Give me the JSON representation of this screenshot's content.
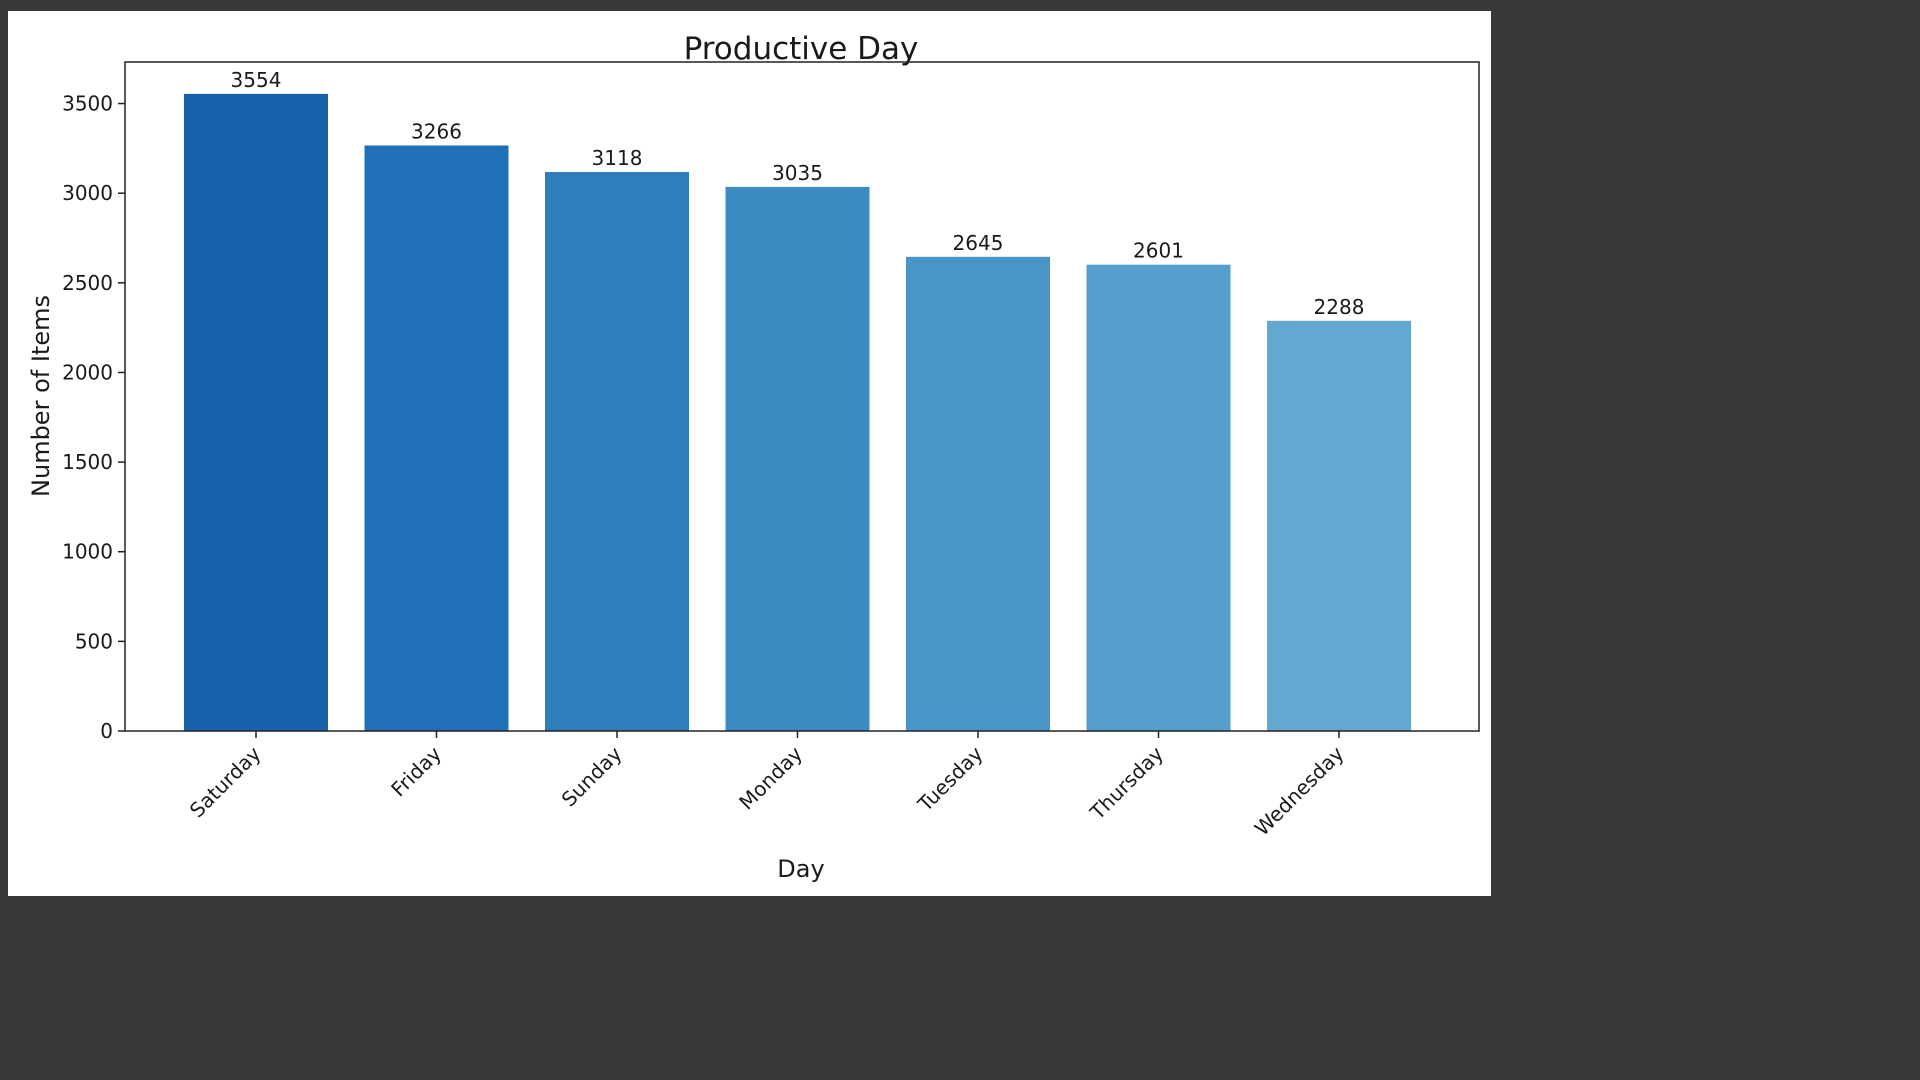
{
  "chart_data": {
    "type": "bar",
    "title": "Productive Day",
    "xlabel": "Day",
    "ylabel": "Number of Items",
    "categories": [
      "Saturday",
      "Friday",
      "Sunday",
      "Monday",
      "Tuesday",
      "Thursday",
      "Wednesday"
    ],
    "values": [
      3554,
      3266,
      3118,
      3035,
      2645,
      2601,
      2288
    ],
    "value_labels": [
      "3554",
      "3266",
      "3118",
      "3035",
      "2645",
      "2601",
      "2288"
    ],
    "bar_colors": [
      "#1661a9",
      "#1f70b6",
      "#2e7ebc",
      "#3b8bc2",
      "#4896c8",
      "#559fcd",
      "#64a8d2"
    ],
    "yticks": [
      0,
      500,
      1000,
      1500,
      2000,
      2500,
      3000,
      3500
    ],
    "ytick_labels": [
      "0",
      "500",
      "1000",
      "1500",
      "2000",
      "2500",
      "3000",
      "3500"
    ],
    "ylim": [
      0,
      3731.7
    ],
    "grid": false,
    "legend": false
  }
}
